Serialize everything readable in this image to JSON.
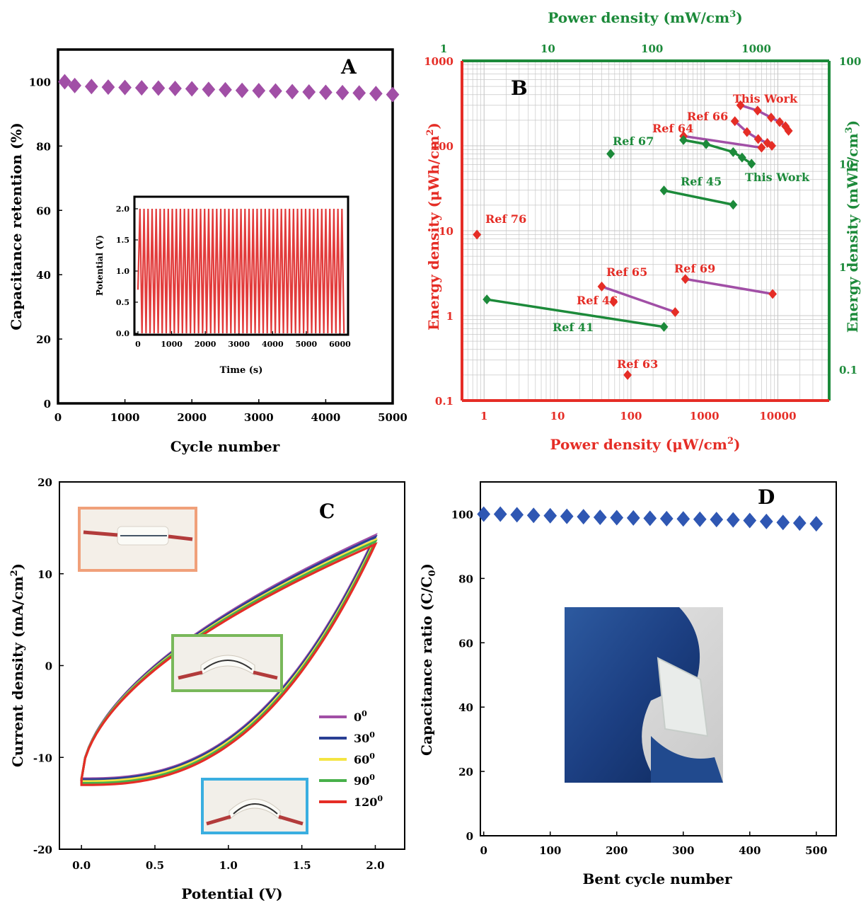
{
  "chart_data": [
    {
      "panel": "A",
      "type": "scatter",
      "xlabel": "Cycle number",
      "ylabel": "Capacitance retention (%)",
      "xlim": [
        0,
        5000
      ],
      "ylim": [
        0,
        110
      ],
      "xticks": [
        "0",
        "1000",
        "2000",
        "3000",
        "4000",
        "5000"
      ],
      "yticks": [
        "0",
        "20",
        "40",
        "60",
        "80",
        "100"
      ],
      "color": "#a14fa6",
      "x": [
        100,
        250,
        500,
        750,
        1000,
        1250,
        1500,
        1750,
        2000,
        2250,
        2500,
        2750,
        3000,
        3250,
        3500,
        3750,
        4000,
        4250,
        4500,
        4750,
        5000
      ],
      "y": [
        100,
        98.8,
        98.5,
        98.3,
        98.2,
        98.1,
        98,
        97.9,
        97.8,
        97.6,
        97.5,
        97.3,
        97.2,
        97.1,
        96.9,
        96.8,
        96.7,
        96.6,
        96.5,
        96.3,
        96
      ],
      "inset": {
        "type": "line",
        "xlabel": "Time (s)",
        "ylabel": "Potential (V)",
        "xlim": [
          0,
          6200
        ],
        "ylim": [
          0,
          2.1
        ],
        "xticks": [
          "0",
          "1000",
          "2000",
          "3000",
          "4000",
          "5000",
          "6000"
        ],
        "yticks": [
          "0.0",
          "0.5",
          "1.0",
          "1.5",
          "2.0"
        ],
        "color": "#e23b3b",
        "cycles": 51,
        "period_s": 120,
        "vmax": 2.0
      }
    },
    {
      "panel": "B",
      "type": "scatter",
      "xlabel": "Power density (μW/cm²)",
      "ylabel": "Energy density (μWh/cm²)",
      "x2label": "Power density (mW/cm³)",
      "y2label": "Energy density (mWh/cm³)",
      "xscale": "log",
      "yscale": "log",
      "xlim": [
        0.5,
        50000
      ],
      "ylim": [
        0.1,
        1000
      ],
      "x2lim": [
        1.5,
        5000
      ],
      "y2lim": [
        0.05,
        100
      ],
      "xticks": [
        "1",
        "10",
        "100",
        "1000",
        "10000"
      ],
      "yticks": [
        "0.1",
        "1",
        "10",
        "100",
        "1000"
      ],
      "x2ticks": [
        "1",
        "10",
        "100",
        "1000"
      ],
      "y2ticks": [
        "0.1",
        "1",
        "10",
        "100"
      ],
      "primary_color": "#e52d26",
      "secondary_color": "#1c8a3a",
      "annotation_color_red": "#e52d26",
      "annotation_color_green": "#1c8a3a",
      "series": [
        {
          "name": "Ref 76",
          "color": "#e52d26",
          "x": [
            0.8
          ],
          "y": [
            9
          ]
        },
        {
          "name": "Ref 65",
          "color": "#e52d26",
          "line_color": "#a14fa6",
          "x": [
            40,
            400
          ],
          "y": [
            2.2,
            1.1
          ]
        },
        {
          "name": "Ref 46",
          "color": "#e52d26",
          "x": [
            58
          ],
          "y": [
            1.45
          ]
        },
        {
          "name": "Ref 69",
          "color": "#e52d26",
          "line_color": "#a14fa6",
          "x": [
            550,
            8500
          ],
          "y": [
            2.7,
            1.8
          ]
        },
        {
          "name": "Ref 63",
          "color": "#e52d26",
          "x": [
            90
          ],
          "y": [
            0.2
          ]
        },
        {
          "name": "Ref 64",
          "color": "#e52d26",
          "line_color": "#a14fa6",
          "x": [
            520,
            6000
          ],
          "y": [
            130,
            95
          ]
        },
        {
          "name": "Ref 66",
          "color": "#e52d26",
          "line_color": "#a14fa6",
          "x": [
            2600,
            3800,
            5400,
            7200,
            8300
          ],
          "y": [
            195,
            145,
            120,
            108,
            100
          ]
        },
        {
          "name": "This Work",
          "color": "#e52d26",
          "line_color": "#a14fa6",
          "x": [
            3100,
            5300,
            8100,
            10600,
            12700,
            14000
          ],
          "y": [
            300,
            260,
            215,
            190,
            170,
            150
          ]
        },
        {
          "name": "Ref 67",
          "color": "#1c8a3a",
          "x2": [
            40
          ],
          "y2": [
            12.5
          ]
        },
        {
          "name": "Ref 45",
          "color": "#1c8a3a",
          "x2": [
            130,
            600
          ],
          "y2": [
            5.5,
            4.0
          ]
        },
        {
          "name": "Ref 41",
          "color": "#1c8a3a",
          "x2": [
            2.6,
            130
          ],
          "y2": [
            0.48,
            0.26
          ]
        },
        {
          "name": "This Work",
          "color": "#1c8a3a",
          "x2": [
            200,
            330,
            600,
            730,
            900
          ],
          "y2": [
            17,
            15.5,
            13,
            11.5,
            10
          ]
        }
      ],
      "labels": [
        {
          "text": "Ref 76",
          "color": "red"
        },
        {
          "text": "Ref 65",
          "color": "red"
        },
        {
          "text": "Ref 46",
          "color": "red"
        },
        {
          "text": "Ref 41",
          "color": "green"
        },
        {
          "text": "Ref 69",
          "color": "red"
        },
        {
          "text": "Ref 63",
          "color": "red"
        },
        {
          "text": "Ref 67",
          "color": "green"
        },
        {
          "text": "Ref 64",
          "color": "red"
        },
        {
          "text": "Ref 66",
          "color": "red"
        },
        {
          "text": "This Work",
          "color": "red"
        },
        {
          "text": "Ref 45",
          "color": "green"
        },
        {
          "text": "This Work",
          "color": "green"
        }
      ]
    },
    {
      "panel": "C",
      "type": "line",
      "xlabel": "Potential (V)",
      "ylabel": "Current density (mA/cm²)",
      "xlim": [
        -0.15,
        2.2
      ],
      "ylim": [
        -20,
        20
      ],
      "xticks": [
        "0.0",
        "0.5",
        "1.0",
        "1.5",
        "2.0"
      ],
      "yticks": [
        "-20",
        "-10",
        "0",
        "10",
        "20"
      ],
      "series": [
        {
          "name": "0",
          "sup": "0",
          "color": "#a14fa6",
          "vmax": 14.2,
          "vmin": -12.3
        },
        {
          "name": "30",
          "sup": "0",
          "color": "#2a3f94",
          "vmax": 14.0,
          "vmin": -12.4
        },
        {
          "name": "60",
          "sup": "0",
          "color": "#f4e542",
          "vmax": 13.7,
          "vmin": -12.6
        },
        {
          "name": "90",
          "sup": "0",
          "color": "#48b04a",
          "vmax": 13.5,
          "vmin": -12.8
        },
        {
          "name": "120",
          "sup": "0",
          "color": "#e52d26",
          "vmax": 13.2,
          "vmin": -13.0
        }
      ]
    },
    {
      "panel": "D",
      "type": "scatter",
      "xlabel": "Bent cycle number",
      "ylabel": "Capacitance ratio (C/C0)",
      "xlim": [
        -5,
        530
      ],
      "ylim": [
        0,
        110
      ],
      "xticks": [
        "0",
        "100",
        "200",
        "300",
        "400",
        "500"
      ],
      "yticks": [
        "0",
        "20",
        "40",
        "60",
        "80",
        "100"
      ],
      "color": "#2f57b3",
      "x": [
        0,
        25,
        50,
        75,
        100,
        125,
        150,
        175,
        200,
        225,
        250,
        275,
        300,
        325,
        350,
        375,
        400,
        425,
        450,
        475,
        500
      ],
      "y": [
        100,
        100,
        99.8,
        99.6,
        99.5,
        99.3,
        99.2,
        99.0,
        98.9,
        98.8,
        98.7,
        98.6,
        98.5,
        98.4,
        98.3,
        98.2,
        98.0,
        97.7,
        97.4,
        97.2,
        97.0
      ]
    }
  ]
}
